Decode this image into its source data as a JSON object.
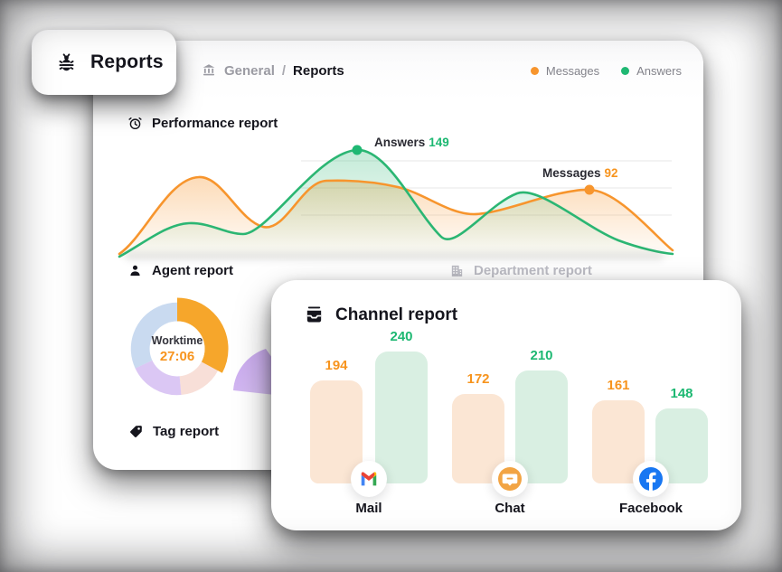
{
  "reports_chip": {
    "label": "Reports"
  },
  "breadcrumb": {
    "section": "General",
    "separator": "/",
    "current": "Reports"
  },
  "legend": {
    "messages": {
      "label": "Messages",
      "color": "#F7952D"
    },
    "answers": {
      "label": "Answers",
      "color": "#1FB873"
    }
  },
  "performance": {
    "title": "Performance report",
    "annotations": {
      "answers": {
        "label": "Answers",
        "value": "149"
      },
      "messages": {
        "label": "Messages",
        "value": "92"
      }
    }
  },
  "agent": {
    "title": "Agent report",
    "donut": {
      "center_label": "Worktime",
      "center_value": "27:06"
    }
  },
  "department": {
    "title": "Department report"
  },
  "tag": {
    "title": "Tag report"
  },
  "channel": {
    "title": "Channel report",
    "groups": [
      {
        "name": "Mail",
        "messages": 194,
        "answers": 240
      },
      {
        "name": "Chat",
        "messages": 172,
        "answers": 210
      },
      {
        "name": "Facebook",
        "messages": 161,
        "answers": 148
      }
    ]
  },
  "chart_data": [
    {
      "type": "area",
      "title": "Performance report",
      "legend_position": "top-right",
      "axes": "hidden",
      "series": [
        {
          "name": "Messages",
          "color": "#F7952D",
          "highlight_point": {
            "label": "Messages",
            "value": 92
          }
        },
        {
          "name": "Answers",
          "color": "#1FB873",
          "highlight_point": {
            "label": "Answers",
            "value": 149
          }
        }
      ]
    },
    {
      "type": "pie",
      "title": "Agent report",
      "center_label": "Worktime",
      "center_value": "27:06",
      "segments": [
        {
          "name": "worktime",
          "color": "#F6A62B",
          "angle_deg": 118,
          "exploded": true
        },
        {
          "name": "segment-2",
          "color": "#F8DFD8",
          "angle_deg": 57
        },
        {
          "name": "segment-3",
          "color": "#DBC7F4",
          "angle_deg": 70
        },
        {
          "name": "segment-4",
          "color": "#C9DAF0",
          "angle_deg": 115
        }
      ]
    },
    {
      "type": "bar",
      "title": "Channel report",
      "categories": [
        "Mail",
        "Chat",
        "Facebook"
      ],
      "series": [
        {
          "name": "Messages",
          "bar_color": "#FBE6D4",
          "label_color": "#F7941E",
          "values": [
            194,
            172,
            161
          ]
        },
        {
          "name": "Answers",
          "bar_color": "#D9EFE2",
          "label_color": "#1DB872",
          "values": [
            240,
            210,
            148
          ]
        }
      ]
    }
  ]
}
